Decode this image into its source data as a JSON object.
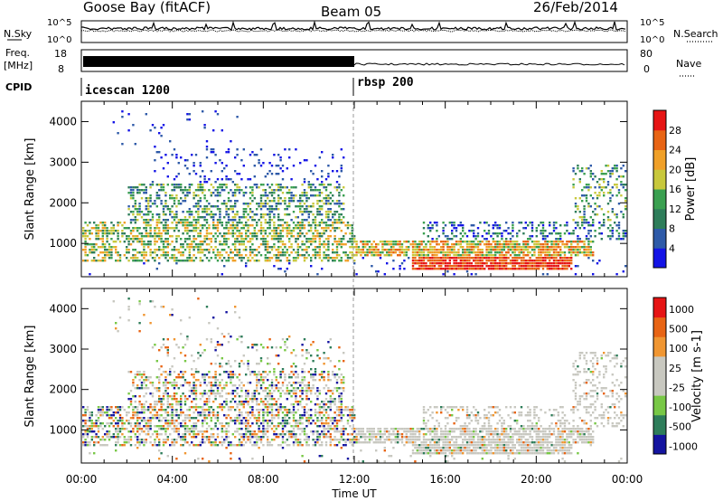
{
  "header": {
    "station": "Goose Bay (fitACF)",
    "beam": "Beam 05",
    "date": "26/Feb/2014"
  },
  "aux_panels": {
    "nsky_label": "N.Sky",
    "nsky_ticks": [
      "10^5",
      "10^0"
    ],
    "nsearch_label": "N.Search",
    "nsearch_ticks": [
      "10^5",
      "10^0"
    ],
    "freq_label": "Freq.",
    "freq_unit": "[MHz]",
    "freq_ticks": [
      18,
      8
    ],
    "nave_label": "Nave",
    "nave_ticks": [
      80,
      0
    ],
    "cpid_label": "CPID",
    "cpid_modes": [
      {
        "name": "icescan 1200",
        "start_hour": 0,
        "end_hour": 12
      },
      {
        "name": "rbsp 200",
        "start_hour": 12,
        "end_hour": 24
      }
    ]
  },
  "colors": {
    "power": [
      "#1414e6",
      "#2e5aa8",
      "#2e7d5a",
      "#3aa050",
      "#c8c83c",
      "#f0a028",
      "#e86414",
      "#e61414"
    ],
    "velocity": [
      "#e61414",
      "#e86414",
      "#f09632",
      "#c8c8c0",
      "#c8c8c0",
      "#78c846",
      "#2e7d5a",
      "#1414a0"
    ]
  },
  "chart_data": [
    {
      "type": "heatmap",
      "name": "power",
      "ylabel": "Slant Range [km]",
      "yticks": [
        1000,
        2000,
        3000,
        4000
      ],
      "ylim": [
        180,
        4500
      ],
      "xlim": [
        0,
        24
      ],
      "colorbar_label": "Power [dB]",
      "colorbar_ticks": [
        4,
        8,
        12,
        16,
        20,
        24,
        28
      ],
      "colorbar_range": [
        0,
        32
      ]
    },
    {
      "type": "heatmap",
      "name": "velocity",
      "ylabel": "Slant Range [km]",
      "yticks": [
        1000,
        2000,
        3000,
        4000
      ],
      "ylim": [
        180,
        4500
      ],
      "xlim": [
        0,
        24
      ],
      "xlabel": "Time UT",
      "xtick_labels": [
        "00:00",
        "04:00",
        "08:00",
        "12:00",
        "16:00",
        "20:00",
        "00:00"
      ],
      "xticks": [
        0,
        4,
        8,
        12,
        16,
        20,
        24
      ],
      "colorbar_label": "Velocity [m s-1]",
      "colorbar_ticks": [
        "1000",
        "500",
        "100",
        "25",
        "-25",
        "-100",
        "-500",
        "-1000"
      ]
    }
  ]
}
